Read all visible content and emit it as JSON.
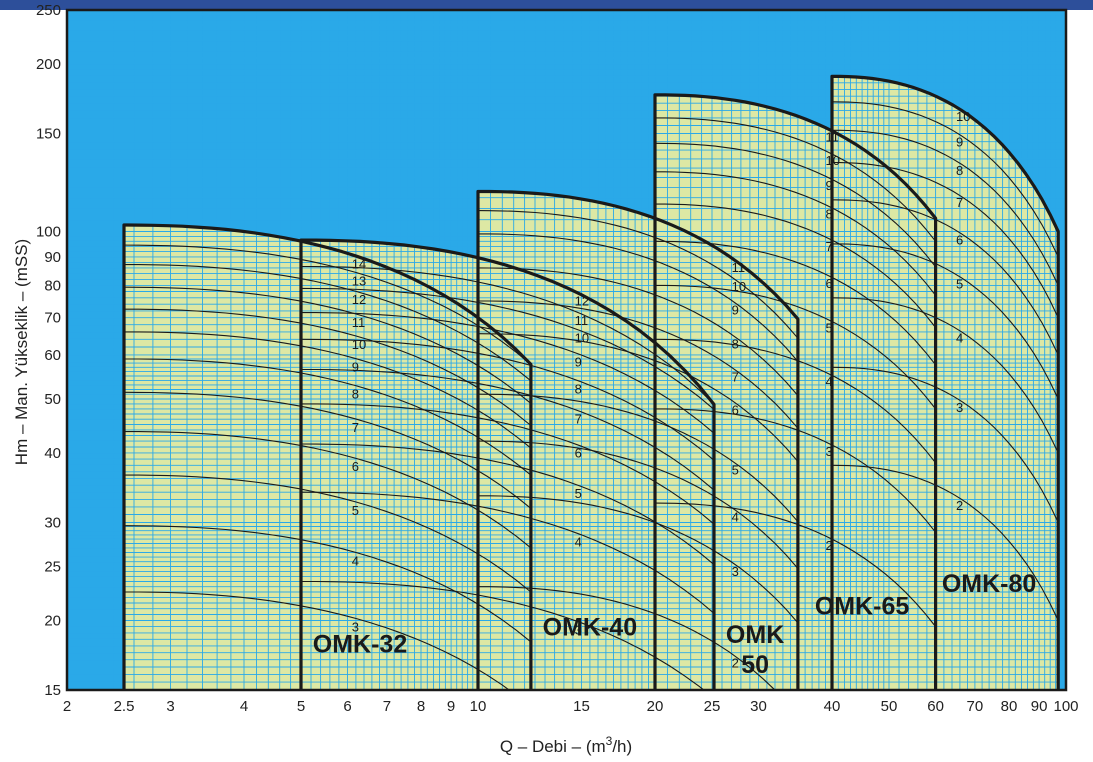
{
  "chart_data": {
    "type": "line",
    "title": "",
    "xlabel": "Q – Debi – (m³/h)",
    "ylabel": "Hm – Man. Yükseklik – (mSS)",
    "xscale": "log",
    "yscale": "log",
    "xlim": [
      2,
      100
    ],
    "ylim": [
      15,
      250
    ],
    "grid": true,
    "x_ticks": [
      {
        "value": 2,
        "label": "2"
      },
      {
        "value": 2.5,
        "label": "2.5"
      },
      {
        "value": 3,
        "label": "3"
      },
      {
        "value": 4,
        "label": "4"
      },
      {
        "value": 5,
        "label": "5"
      },
      {
        "value": 6,
        "label": "6"
      },
      {
        "value": 7,
        "label": "7"
      },
      {
        "value": 8,
        "label": "8"
      },
      {
        "value": 9,
        "label": "9"
      },
      {
        "value": 10,
        "label": "10"
      },
      {
        "value": 15,
        "label": "15"
      },
      {
        "value": 20,
        "label": "20"
      },
      {
        "value": 25,
        "label": "25"
      },
      {
        "value": 30,
        "label": "30"
      },
      {
        "value": 40,
        "label": "40"
      },
      {
        "value": 50,
        "label": "50"
      },
      {
        "value": 60,
        "label": "60"
      },
      {
        "value": 70,
        "label": "70"
      },
      {
        "value": 80,
        "label": "80"
      },
      {
        "value": 90,
        "label": "90"
      },
      {
        "value": 100,
        "label": "100"
      }
    ],
    "y_ticks": [
      {
        "value": 15,
        "label": "15"
      },
      {
        "value": 20,
        "label": "20"
      },
      {
        "value": 25,
        "label": "25"
      },
      {
        "value": 30,
        "label": "30"
      },
      {
        "value": 40,
        "label": "40"
      },
      {
        "value": 50,
        "label": "50"
      },
      {
        "value": 60,
        "label": "60"
      },
      {
        "value": 70,
        "label": "70"
      },
      {
        "value": 80,
        "label": "80"
      },
      {
        "value": 90,
        "label": "90"
      },
      {
        "value": 100,
        "label": "100"
      },
      {
        "value": 150,
        "label": "150"
      },
      {
        "value": 200,
        "label": "200"
      },
      {
        "value": 250,
        "label": "250"
      }
    ],
    "colors": {
      "background": "#2aa9e8",
      "region_fill": "#dde8a4",
      "grid": "#2aa9e8",
      "curve": "#1a1a1a",
      "top_bar": "#2d4f9a"
    },
    "series": [
      {
        "name": "OMK-32",
        "x_range": [
          2.5,
          12.3
        ],
        "label_pos": {
          "q": 6.3,
          "h": 17.5
        },
        "stage_label_q": 6.1,
        "stages": [
          {
            "stage": "3",
            "h0": 22.5,
            "h1": 14.0
          },
          {
            "stage": "4",
            "h0": 29.6,
            "h1": 18.3
          },
          {
            "stage": "5",
            "h0": 36.5,
            "h1": 22.5
          },
          {
            "stage": "6",
            "h0": 43.7,
            "h1": 27.0
          },
          {
            "stage": "7",
            "h0": 51.4,
            "h1": 31.8
          },
          {
            "stage": "8",
            "h0": 59.0,
            "h1": 36.5
          },
          {
            "stage": "9",
            "h0": 66.0,
            "h1": 40.8
          },
          {
            "stage": "10",
            "h0": 72.5,
            "h1": 44.8
          },
          {
            "stage": "11",
            "h0": 79.4,
            "h1": 49.1
          },
          {
            "stage": "12",
            "h0": 87.2,
            "h1": 53.9
          },
          {
            "stage": "13",
            "h0": 94.5,
            "h1": 57.7
          },
          {
            "stage": "14",
            "h0": 102.7,
            "h1": 57.7
          }
        ]
      },
      {
        "name": "OMK-40",
        "x_range": [
          5,
          25.2
        ],
        "label_pos": {
          "q": 15.5,
          "h": 18.8
        },
        "stage_label_q": 14.6,
        "stages": [
          {
            "stage": "3",
            "h0": 23.5,
            "h1": 14.5
          },
          {
            "stage": "4",
            "h0": 34.0,
            "h1": 20.6
          },
          {
            "stage": "5",
            "h0": 41.5,
            "h1": 25.2
          },
          {
            "stage": "6",
            "h0": 49.0,
            "h1": 29.8
          },
          {
            "stage": "7",
            "h0": 56.5,
            "h1": 34.3
          },
          {
            "stage": "8",
            "h0": 64.0,
            "h1": 38.8
          },
          {
            "stage": "9",
            "h0": 71.5,
            "h1": 43.4
          },
          {
            "stage": "10",
            "h0": 79.0,
            "h1": 47.9
          },
          {
            "stage": "11",
            "h0": 86.5,
            "h1": 48.9
          },
          {
            "stage": "12",
            "h0": 96.5,
            "h1": 48.9
          }
        ]
      },
      {
        "name": "OMK 50",
        "x_range": [
          10,
          35
        ],
        "label_pos": {
          "q": 29.6,
          "h": 17.2
        },
        "stage_label_q": 27,
        "stages": [
          {
            "stage": "2",
            "h0": 23.0,
            "h1": 13.5
          },
          {
            "stage": "3",
            "h0": 33.5,
            "h1": 19.8
          },
          {
            "stage": "4",
            "h0": 42.0,
            "h1": 24.8
          },
          {
            "stage": "5",
            "h0": 51.0,
            "h1": 30.1
          },
          {
            "stage": "6",
            "h0": 65.5,
            "h1": 38.6
          },
          {
            "stage": "7",
            "h0": 75.0,
            "h1": 44.3
          },
          {
            "stage": "8",
            "h0": 86.0,
            "h1": 50.7
          },
          {
            "stage": "9",
            "h0": 99.0,
            "h1": 58.4
          },
          {
            "stage": "10",
            "h0": 109.0,
            "h1": 64.3
          },
          {
            "stage": "11",
            "h0": 118.0,
            "h1": 69.6
          }
        ]
      },
      {
        "name": "OMK-65",
        "x_range": [
          20,
          60
        ],
        "label_pos": {
          "q": 45,
          "h": 20.5
        },
        "stage_label_q": 39,
        "stages": [
          {
            "stage": "2",
            "h0": 32.5,
            "h1": 19.5
          },
          {
            "stage": "3",
            "h0": 48.0,
            "h1": 28.8
          },
          {
            "stage": "4",
            "h0": 64.0,
            "h1": 38.4
          },
          {
            "stage": "5",
            "h0": 80.0,
            "h1": 48.0
          },
          {
            "stage": "6",
            "h0": 96.0,
            "h1": 57.6
          },
          {
            "stage": "7",
            "h0": 112.0,
            "h1": 67.2
          },
          {
            "stage": "8",
            "h0": 128.0,
            "h1": 76.8
          },
          {
            "stage": "9",
            "h0": 144.0,
            "h1": 86.4
          },
          {
            "stage": "10",
            "h0": 160.0,
            "h1": 96.0
          },
          {
            "stage": "11",
            "h0": 176.0,
            "h1": 105.6
          }
        ]
      },
      {
        "name": "OMK-80",
        "x_range": [
          40,
          97
        ],
        "label_pos": {
          "q": 74,
          "h": 22.5
        },
        "stage_label_q": 65,
        "stages": [
          {
            "stage": "2",
            "h0": 38.0,
            "h1": 20.0
          },
          {
            "stage": "3",
            "h0": 57.0,
            "h1": 30.0
          },
          {
            "stage": "4",
            "h0": 76.0,
            "h1": 40.0
          },
          {
            "stage": "5",
            "h0": 95.0,
            "h1": 50.0
          },
          {
            "stage": "6",
            "h0": 114.0,
            "h1": 60.0
          },
          {
            "stage": "7",
            "h0": 133.0,
            "h1": 70.0
          },
          {
            "stage": "8",
            "h0": 152.0,
            "h1": 80.0
          },
          {
            "stage": "9",
            "h0": 171.0,
            "h1": 90.0
          },
          {
            "stage": "10",
            "h0": 190.0,
            "h1": 100.0
          }
        ]
      }
    ]
  }
}
